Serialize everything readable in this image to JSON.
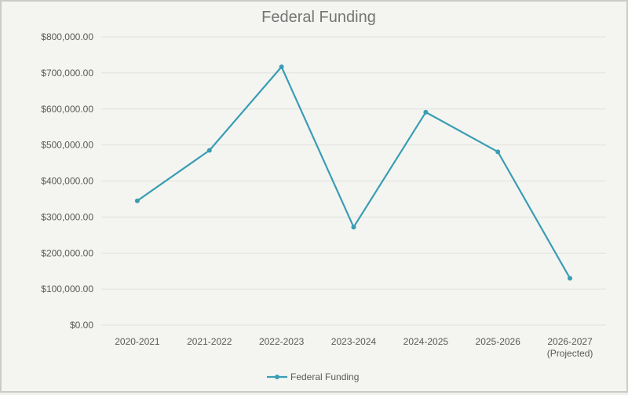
{
  "chart_data": {
    "type": "line",
    "title": "Federal Funding",
    "xlabel": "",
    "ylabel": "",
    "categories": [
      "2020-2021",
      "2021-2022",
      "2022-2023",
      "2023-2024",
      "2024-2025",
      "2025-2026",
      "2026-2027"
    ],
    "category_sublabels": [
      "",
      "",
      "",
      "",
      "",
      "",
      "(Projected)"
    ],
    "series": [
      {
        "name": "Federal Funding",
        "values": [
          345000,
          485000,
          717000,
          272000,
          591000,
          481000,
          130000
        ],
        "color": "#3a9db4"
      }
    ],
    "ylim": [
      0,
      800000
    ],
    "yticks": [
      0,
      100000,
      200000,
      300000,
      400000,
      500000,
      600000,
      700000,
      800000
    ],
    "ytick_labels": [
      "$0.00",
      "$100,000.00",
      "$200,000.00",
      "$300,000.00",
      "$400,000.00",
      "$500,000.00",
      "$600,000.00",
      "$700,000.00",
      "$800,000.00"
    ],
    "grid": true,
    "legend_position": "bottom",
    "colors": {
      "gridline": "#dfe1dc",
      "axis_text": "#595959",
      "title_text": "#757575",
      "background": "#f4f5f1"
    }
  }
}
